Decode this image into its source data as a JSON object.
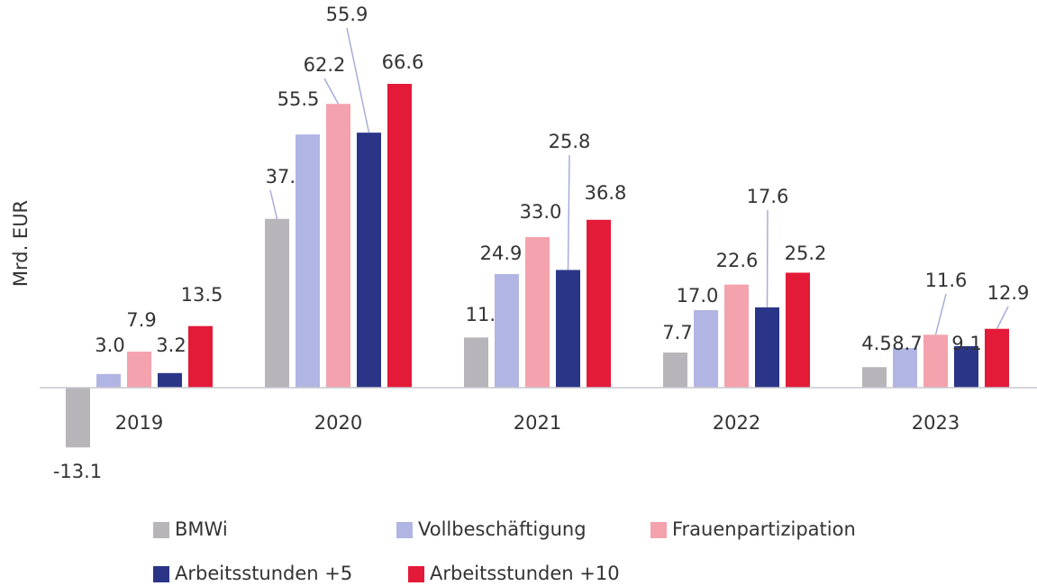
{
  "chart_data": {
    "type": "bar",
    "y_label": "Mrd. EUR",
    "categories": [
      "2019",
      "2020",
      "2021",
      "2022",
      "2023"
    ],
    "series": [
      {
        "name": "BMWi",
        "color": "#b7b5b9",
        "values": [
          -13.1,
          37,
          11,
          7.7,
          4.5
        ],
        "value_labels": [
          "-13.1",
          "37.0",
          "11.0",
          "7.7",
          "4.5"
        ]
      },
      {
        "name": "Vollbeschäftigung",
        "color": "#b1b5e3",
        "values": [
          3,
          55.5,
          24.9,
          17,
          8.7
        ],
        "value_labels": [
          "3.0",
          "55.5",
          "24.9",
          "17.0",
          "8.7"
        ]
      },
      {
        "name": "Frauenpartizipation",
        "color": "#f4a2ad",
        "values": [
          7.9,
          62.2,
          33,
          22.6,
          11.6
        ],
        "value_labels": [
          "7.9",
          "62.2",
          "33.0",
          "22.6",
          "11.6"
        ]
      },
      {
        "name": "Arbeitsstunden +5",
        "color": "#2b3587",
        "values": [
          3.2,
          55.9,
          25.8,
          17.6,
          9.1
        ],
        "value_labels": [
          "3.2",
          "55.9",
          "25.8",
          "17.6",
          "9.1"
        ]
      },
      {
        "name": "Arbeitsstunden +10",
        "color": "#e31a38",
        "values": [
          13.5,
          66.6,
          36.8,
          25.2,
          12.9
        ],
        "value_labels": [
          "13.5",
          "66.6",
          "36.8",
          "25.2",
          "12.9"
        ]
      }
    ],
    "ylim": [
      -15,
      70
    ],
    "legend": "bottom"
  }
}
